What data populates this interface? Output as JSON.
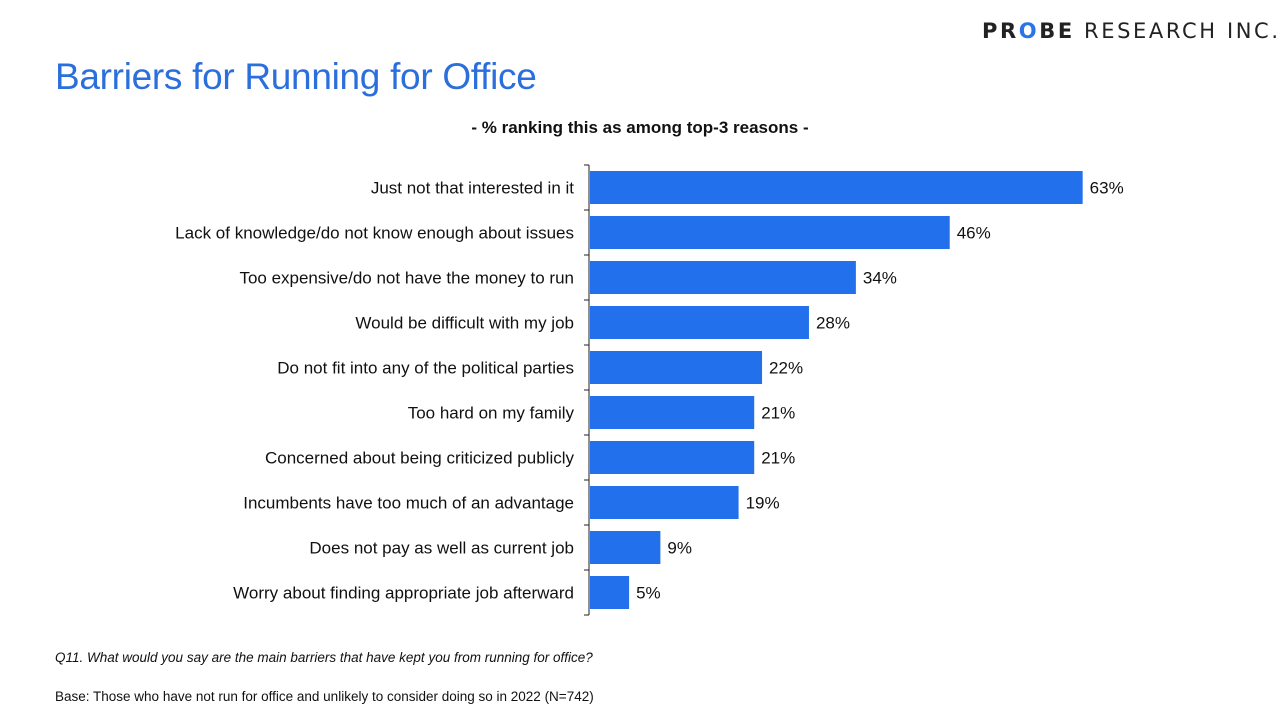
{
  "logo": {
    "text_bold_1": "PR",
    "text_o": "O",
    "text_bold_2": "BE",
    "text_rest": " RESEARCH INC."
  },
  "title": "Barriers for Running for Office",
  "subtitle": "- % ranking this as among top-3 reasons -",
  "chart_data": {
    "type": "bar",
    "orientation": "horizontal",
    "categories": [
      "Just not that interested in it",
      "Lack of knowledge/do not know enough about issues",
      "Too expensive/do not have the money to run",
      "Would be difficult with my job",
      "Do not fit into any of the political parties",
      "Too hard on my family",
      "Concerned about being criticized publicly",
      "Incumbents have too much of an advantage",
      "Does not pay as well as current job",
      "Worry about finding appropriate job afterward"
    ],
    "values": [
      63,
      46,
      34,
      28,
      22,
      21,
      21,
      19,
      9,
      5
    ],
    "value_labels": [
      "63%",
      "46%",
      "34%",
      "28%",
      "22%",
      "21%",
      "21%",
      "19%",
      "9%",
      "5%"
    ],
    "color": "#2270ec",
    "xlim": [
      0,
      70
    ],
    "grid": false
  },
  "footnotes": {
    "question": "Q11. What would you say are the main barriers that have kept you from running for office?",
    "base": "Base: Those who have not run for office and unlikely to consider doing so in 2022 (N=742)"
  }
}
